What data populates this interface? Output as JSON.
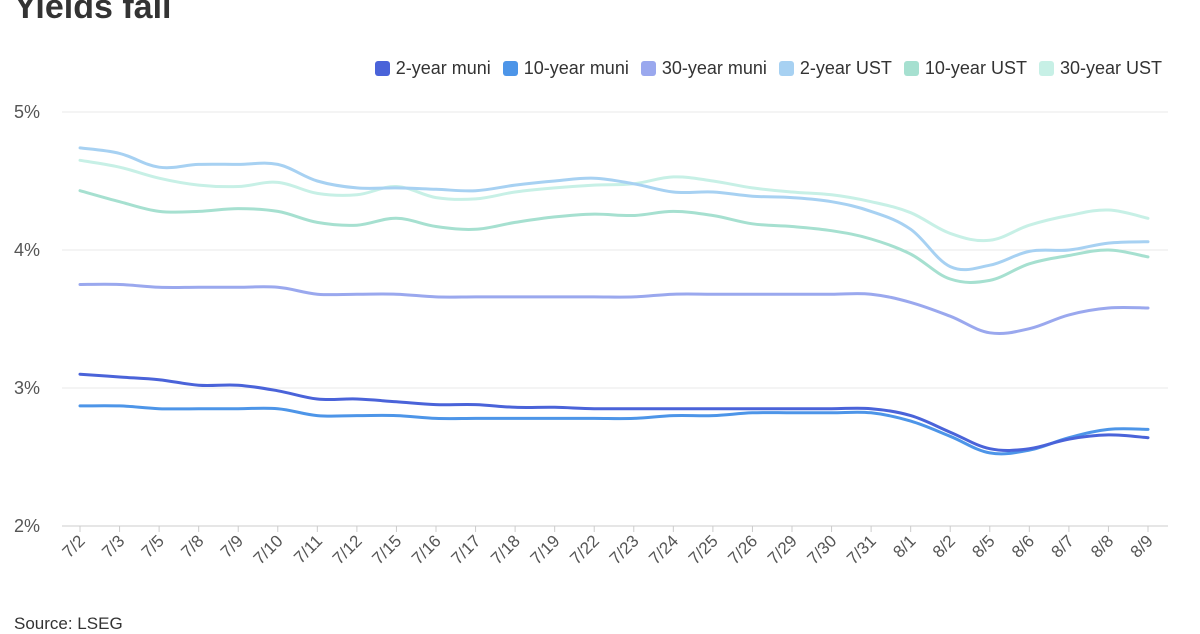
{
  "chart_data": {
    "type": "line",
    "title": "Yields fall",
    "source": "Source: LSEG",
    "x": [
      "7/2",
      "7/3",
      "7/5",
      "7/8",
      "7/9",
      "7/10",
      "7/11",
      "7/12",
      "7/15",
      "7/16",
      "7/17",
      "7/18",
      "7/19",
      "7/22",
      "7/23",
      "7/24",
      "7/25",
      "7/26",
      "7/29",
      "7/30",
      "7/31",
      "8/1",
      "8/2",
      "8/5",
      "8/6",
      "8/7",
      "8/8",
      "8/9"
    ],
    "ylim": [
      2,
      5
    ],
    "yticks": [
      2,
      3,
      4,
      5
    ],
    "ytick_labels": [
      "2%",
      "3%",
      "4%",
      "5%"
    ],
    "grid": true,
    "legend_position": "top-right",
    "series": [
      {
        "name": "2-year muni",
        "color": "#4a63d9",
        "values": [
          3.1,
          3.08,
          3.06,
          3.02,
          3.02,
          2.98,
          2.92,
          2.92,
          2.9,
          2.88,
          2.88,
          2.86,
          2.86,
          2.85,
          2.85,
          2.85,
          2.85,
          2.85,
          2.85,
          2.85,
          2.85,
          2.8,
          2.68,
          2.56,
          2.56,
          2.63,
          2.66,
          2.64
        ]
      },
      {
        "name": "10-year muni",
        "color": "#4d95e8",
        "values": [
          2.87,
          2.87,
          2.85,
          2.85,
          2.85,
          2.85,
          2.8,
          2.8,
          2.8,
          2.78,
          2.78,
          2.78,
          2.78,
          2.78,
          2.78,
          2.8,
          2.8,
          2.82,
          2.82,
          2.82,
          2.82,
          2.76,
          2.65,
          2.53,
          2.55,
          2.64,
          2.7,
          2.7
        ]
      },
      {
        "name": "30-year muni",
        "color": "#9aa8ee",
        "values": [
          3.75,
          3.75,
          3.73,
          3.73,
          3.73,
          3.73,
          3.68,
          3.68,
          3.68,
          3.66,
          3.66,
          3.66,
          3.66,
          3.66,
          3.66,
          3.68,
          3.68,
          3.68,
          3.68,
          3.68,
          3.68,
          3.62,
          3.52,
          3.4,
          3.43,
          3.53,
          3.58,
          3.58
        ]
      },
      {
        "name": "2-year UST",
        "color": "#a7d1f2",
        "values": [
          4.74,
          4.7,
          4.6,
          4.62,
          4.62,
          4.62,
          4.5,
          4.45,
          4.45,
          4.44,
          4.43,
          4.47,
          4.5,
          4.52,
          4.48,
          4.42,
          4.42,
          4.39,
          4.38,
          4.35,
          4.28,
          4.15,
          3.88,
          3.89,
          3.99,
          4.0,
          4.05,
          4.06
        ]
      },
      {
        "name": "10-year UST",
        "color": "#a6e0d0",
        "values": [
          4.43,
          4.35,
          4.28,
          4.28,
          4.3,
          4.28,
          4.2,
          4.18,
          4.23,
          4.17,
          4.15,
          4.2,
          4.24,
          4.26,
          4.25,
          4.28,
          4.25,
          4.19,
          4.17,
          4.14,
          4.08,
          3.97,
          3.79,
          3.78,
          3.9,
          3.96,
          4.0,
          3.95
        ]
      },
      {
        "name": "30-year UST",
        "color": "#c7f0e6",
        "values": [
          4.65,
          4.6,
          4.52,
          4.47,
          4.46,
          4.49,
          4.41,
          4.4,
          4.46,
          4.38,
          4.37,
          4.42,
          4.45,
          4.47,
          4.48,
          4.53,
          4.5,
          4.45,
          4.42,
          4.4,
          4.35,
          4.27,
          4.12,
          4.07,
          4.18,
          4.25,
          4.29,
          4.23
        ]
      }
    ]
  }
}
